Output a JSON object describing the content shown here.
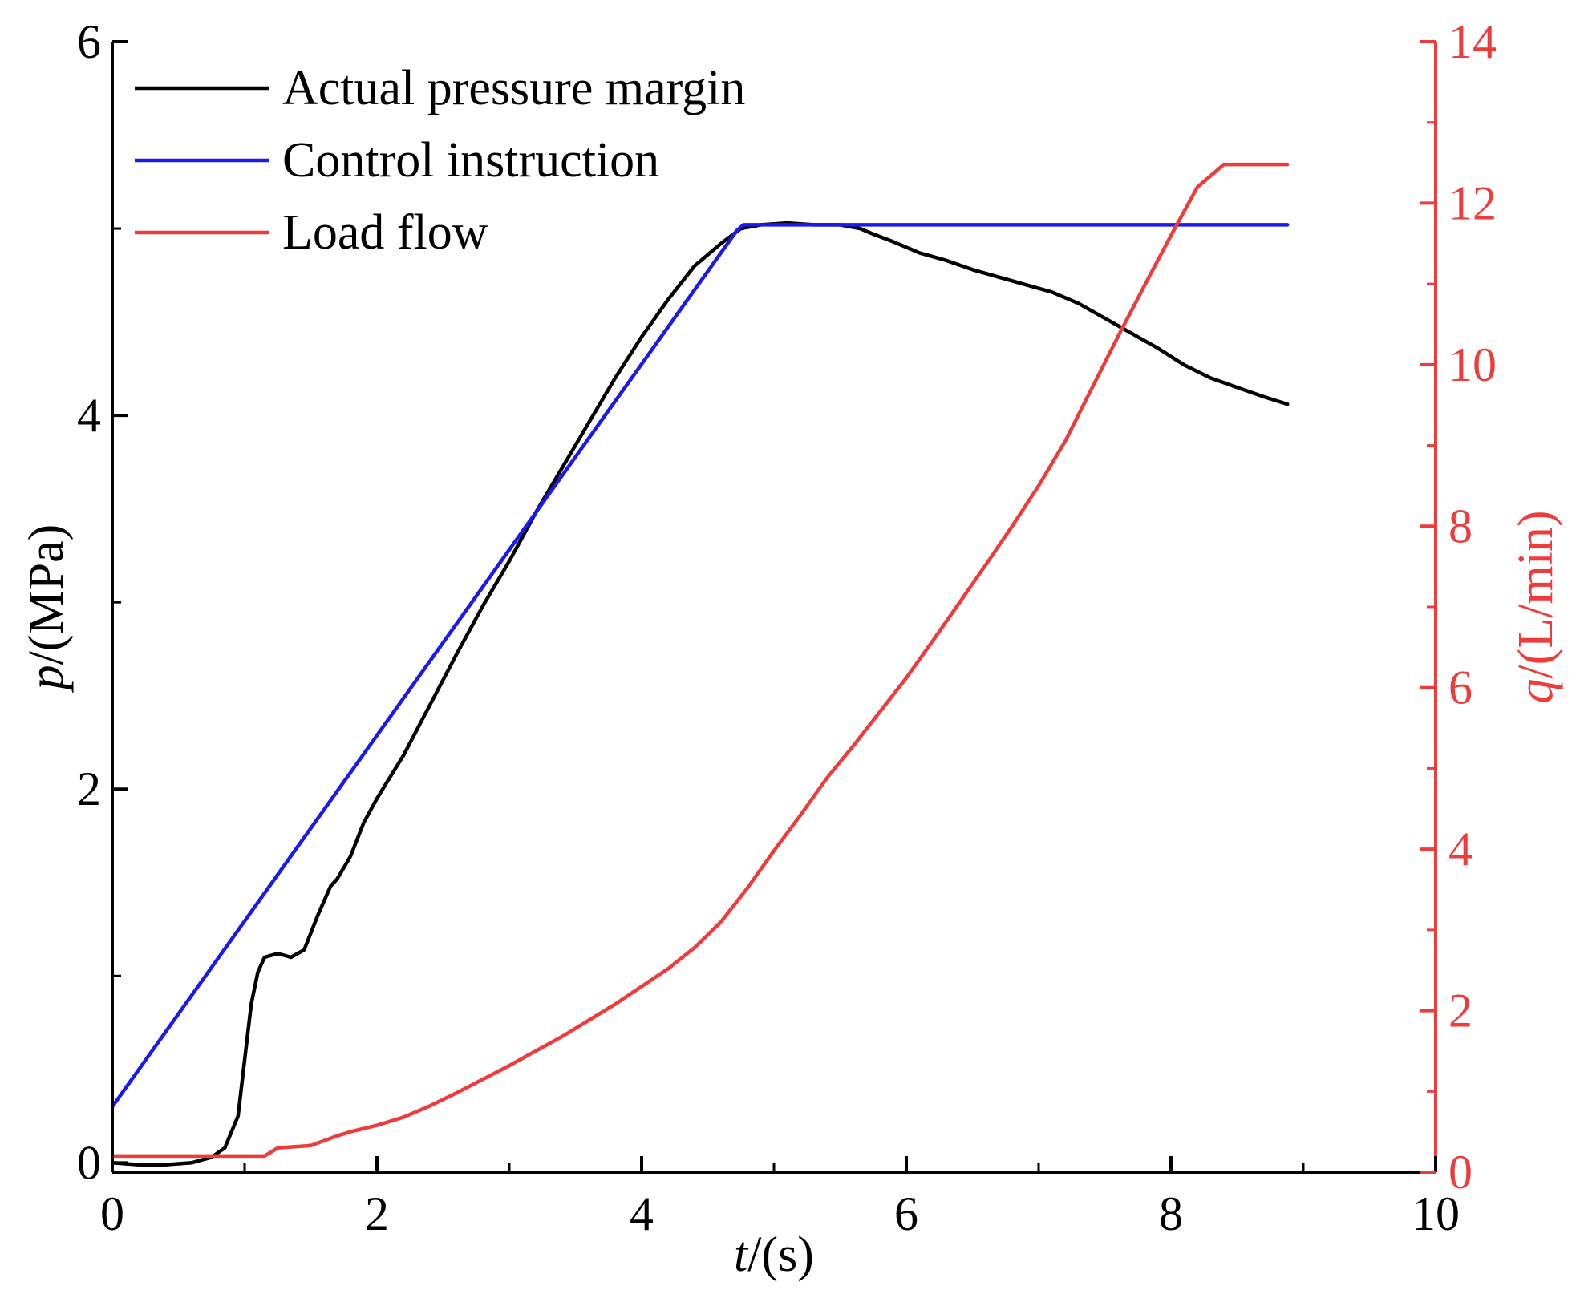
{
  "chart_data": {
    "type": "line",
    "x_axis": {
      "label_var": "t",
      "label_unit": "/(s)",
      "range": [
        0,
        10
      ],
      "ticks": [
        "0",
        "2",
        "4",
        "6",
        "8",
        "10"
      ]
    },
    "y_left": {
      "label_var": "p",
      "label_unit": "/(MPa)",
      "range": [
        -0.05,
        6
      ],
      "ticks": [
        "0",
        "2",
        "4",
        "6"
      ],
      "color": "#000000"
    },
    "y_right": {
      "label_var": "q",
      "label_unit": "/(L/min)",
      "range": [
        0,
        14
      ],
      "ticks": [
        "0",
        "2",
        "4",
        "6",
        "8",
        "10",
        "12",
        "14"
      ],
      "color": "#ef3b3b"
    },
    "legend_position": "top-left",
    "series": [
      {
        "name": "Actual pressure margin",
        "axis": "left",
        "color": "#000000",
        "x": [
          0,
          0.2,
          0.4,
          0.6,
          0.75,
          0.85,
          0.95,
          1.0,
          1.05,
          1.1,
          1.15,
          1.25,
          1.35,
          1.45,
          1.55,
          1.65,
          1.7,
          1.8,
          1.9,
          2.0,
          2.2,
          2.4,
          2.6,
          2.8,
          3.0,
          3.2,
          3.4,
          3.6,
          3.8,
          4.0,
          4.2,
          4.4,
          4.6,
          4.75,
          4.9,
          5.1,
          5.3,
          5.5,
          5.65,
          5.75,
          5.9,
          6.1,
          6.3,
          6.5,
          6.7,
          6.9,
          7.1,
          7.3,
          7.5,
          7.7,
          7.9,
          8.1,
          8.3,
          8.5,
          8.7,
          8.88
        ],
        "y": [
          0.0,
          -0.01,
          -0.01,
          0.0,
          0.03,
          0.08,
          0.25,
          0.55,
          0.85,
          1.02,
          1.1,
          1.12,
          1.1,
          1.14,
          1.32,
          1.48,
          1.52,
          1.64,
          1.82,
          1.95,
          2.18,
          2.45,
          2.72,
          2.98,
          3.22,
          3.48,
          3.72,
          3.96,
          4.2,
          4.42,
          4.62,
          4.8,
          4.92,
          5.0,
          5.02,
          5.03,
          5.02,
          5.02,
          5.0,
          4.97,
          4.93,
          4.87,
          4.83,
          4.78,
          4.74,
          4.7,
          4.66,
          4.6,
          4.52,
          4.44,
          4.36,
          4.27,
          4.2,
          4.15,
          4.1,
          4.06
        ]
      },
      {
        "name": "Control instruction",
        "axis": "left",
        "color": "#1a1aee",
        "x": [
          0,
          4.72,
          4.77,
          8.88
        ],
        "y": [
          0.3,
          4.99,
          5.02,
          5.02
        ]
      },
      {
        "name": "Load flow",
        "axis": "right",
        "color": "#ef3b3b",
        "x": [
          0,
          0.5,
          1.0,
          1.15,
          1.25,
          1.5,
          1.7,
          1.8,
          2.0,
          2.2,
          2.4,
          2.6,
          2.8,
          3.0,
          3.2,
          3.4,
          3.6,
          3.8,
          4.0,
          4.2,
          4.4,
          4.6,
          4.8,
          5.0,
          5.2,
          5.4,
          5.6,
          5.8,
          6.0,
          6.2,
          6.4,
          6.6,
          6.8,
          7.0,
          7.2,
          7.4,
          7.6,
          7.8,
          8.0,
          8.2,
          8.4,
          8.6,
          8.88
        ],
        "y": [
          0.2,
          0.2,
          0.2,
          0.2,
          0.3,
          0.33,
          0.45,
          0.5,
          0.58,
          0.68,
          0.82,
          0.98,
          1.15,
          1.32,
          1.5,
          1.68,
          1.88,
          2.08,
          2.3,
          2.52,
          2.78,
          3.1,
          3.52,
          3.98,
          4.42,
          4.88,
          5.28,
          5.7,
          6.12,
          6.58,
          7.05,
          7.52,
          8.0,
          8.5,
          9.05,
          9.7,
          10.35,
          10.98,
          11.6,
          12.2,
          12.48,
          12.48,
          12.48
        ]
      }
    ]
  }
}
